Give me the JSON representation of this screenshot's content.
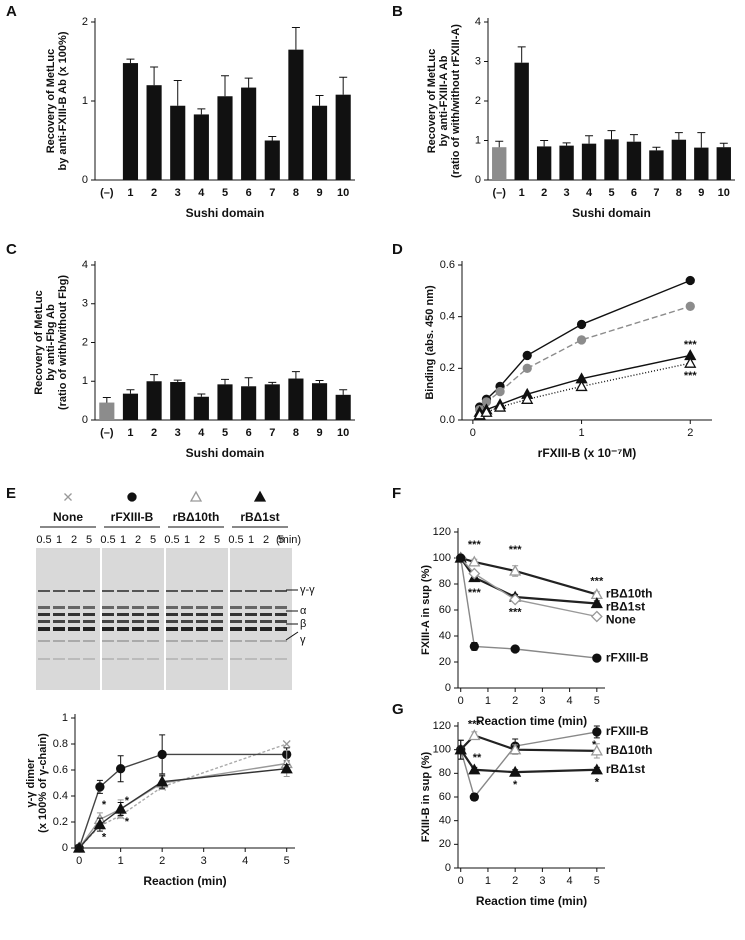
{
  "chart_data": [
    {
      "panel": "A",
      "type": "bar",
      "ylabel": [
        "Recovery of MetLuc",
        "by anti-FXIII-B Ab (x 100%)"
      ],
      "xlabel": "Sushi domain",
      "categories": [
        "(–)",
        "1",
        "2",
        "3",
        "4",
        "5",
        "6",
        "7",
        "8",
        "9",
        "10"
      ],
      "values": [
        0,
        1.48,
        1.2,
        0.94,
        0.83,
        1.06,
        1.17,
        0.5,
        1.65,
        0.94,
        1.08
      ],
      "errors": [
        null,
        0.05,
        0.23,
        0.32,
        0.07,
        0.26,
        0.12,
        0.05,
        0.28,
        0.13,
        0.22
      ],
      "colors": [
        "#111111",
        "#111111",
        "#111111",
        "#111111",
        "#111111",
        "#111111",
        "#111111",
        "#111111",
        "#111111",
        "#111111",
        "#111111"
      ],
      "ylim": [
        0,
        2
      ],
      "yticks": [
        0,
        1,
        2
      ]
    },
    {
      "panel": "B",
      "type": "bar",
      "ylabel": [
        "Recovery of MetLuc",
        "by anti-FXIII-A Ab",
        "(ratio of with/without rFXIII-A)"
      ],
      "xlabel": "Sushi domain",
      "categories": [
        "(–)",
        "1",
        "2",
        "3",
        "4",
        "5",
        "6",
        "7",
        "8",
        "9",
        "10"
      ],
      "values": [
        0.83,
        2.97,
        0.85,
        0.87,
        0.92,
        1.03,
        0.97,
        0.75,
        1.02,
        0.82,
        0.83
      ],
      "errors": [
        0.15,
        0.4,
        0.15,
        0.07,
        0.2,
        0.22,
        0.18,
        0.08,
        0.18,
        0.38,
        0.1
      ],
      "colors": [
        "#8c8c8c",
        "#111111",
        "#111111",
        "#111111",
        "#111111",
        "#111111",
        "#111111",
        "#111111",
        "#111111",
        "#111111",
        "#111111"
      ],
      "ylim": [
        0,
        4
      ],
      "yticks": [
        0,
        1,
        2,
        3,
        4
      ]
    },
    {
      "panel": "C",
      "type": "bar",
      "ylabel": [
        "Recovery of MetLuc",
        "by anti-Fbg Ab",
        "(ratio of with/without Fbg)"
      ],
      "xlabel": "Sushi domain",
      "categories": [
        "(–)",
        "1",
        "2",
        "3",
        "4",
        "5",
        "6",
        "7",
        "8",
        "9",
        "10"
      ],
      "values": [
        0.45,
        0.68,
        1.0,
        0.98,
        0.6,
        0.92,
        0.87,
        0.92,
        1.07,
        0.95,
        0.65
      ],
      "errors": [
        0.13,
        0.1,
        0.17,
        0.05,
        0.07,
        0.13,
        0.22,
        0.05,
        0.18,
        0.07,
        0.13
      ],
      "colors": [
        "#8c8c8c",
        "#111111",
        "#111111",
        "#111111",
        "#111111",
        "#111111",
        "#111111",
        "#111111",
        "#111111",
        "#111111",
        "#111111"
      ],
      "ylim": [
        0,
        4
      ],
      "yticks": [
        0,
        1,
        2,
        3,
        4
      ]
    },
    {
      "panel": "D",
      "type": "line",
      "ylabel": [
        "Binding (abs. 450 nm)"
      ],
      "xlabel": "rFXIII-B (x 10⁻⁷M)",
      "x": [
        0.0625,
        0.125,
        0.25,
        0.5,
        1,
        2
      ],
      "series": [
        {
          "color": "#111111",
          "line_color": "#111111",
          "marker": "circle",
          "filled": true,
          "values": [
            0.05,
            0.08,
            0.13,
            0.25,
            0.37,
            0.54
          ]
        },
        {
          "color": "#8c8c8c",
          "line_color": "#8c8c8c",
          "marker": "circle",
          "filled": true,
          "dash": "6,3",
          "values": [
            0.04,
            0.07,
            0.11,
            0.2,
            0.31,
            0.44
          ]
        },
        {
          "color": "#111111",
          "line_color": "#111111",
          "marker": "triangle",
          "filled": true,
          "values": [
            0.03,
            0.04,
            0.06,
            0.1,
            0.16,
            0.25
          ]
        },
        {
          "color": "#111111",
          "line_color": "#111111",
          "marker": "triangle",
          "filled": false,
          "dash": "1,2",
          "values": [
            0.02,
            0.03,
            0.05,
            0.08,
            0.13,
            0.22
          ]
        }
      ],
      "annotations": [
        {
          "text": "***",
          "x": 2,
          "y": 0.29
        },
        {
          "text": "***",
          "x": 2,
          "y": 0.17
        }
      ],
      "xlim": [
        -0.1,
        2.2
      ],
      "xticks": [
        0,
        1,
        2
      ],
      "ylim": [
        0,
        0.6
      ],
      "yticks": [
        {
          "value": 0,
          "label": "0.0"
        },
        0.2,
        0.4,
        0.6
      ]
    },
    {
      "panel": "E",
      "type": "line",
      "ylabel": [
        "γ-γ dimer",
        "(x 100% of γ-chain)"
      ],
      "xlabel": "Reaction (min)",
      "x": [
        0,
        0.5,
        1,
        2,
        5
      ],
      "series": [
        {
          "name": "None",
          "color": "#999999",
          "line_color": "#aaaaaa",
          "marker": "x",
          "filled": false,
          "dash": "3,2",
          "values": [
            0,
            0.17,
            0.25,
            0.47,
            0.8
          ]
        },
        {
          "name": "rFXIII-B",
          "color": "#111111",
          "line_color": "#444444",
          "marker": "circle",
          "filled": true,
          "values": [
            0,
            0.47,
            0.61,
            0.72,
            0.72
          ],
          "errors": [
            0,
            0.05,
            0.1,
            0.15,
            0.05
          ]
        },
        {
          "name": "rBΔ10th",
          "color": "#999999",
          "line_color": "#999999",
          "marker": "triangle",
          "filled": false,
          "values": [
            0,
            0.22,
            0.3,
            0.5,
            0.65
          ],
          "errors": [
            0,
            0.05,
            0.07,
            0.05,
            0.1
          ]
        },
        {
          "name": "rBΔ1st",
          "color": "#111111",
          "line_color": "#333333",
          "marker": "triangle",
          "filled": true,
          "values": [
            0,
            0.18,
            0.3,
            0.51,
            0.61
          ],
          "errors": [
            0,
            0.05,
            0.05,
            0.05,
            0.03
          ]
        }
      ],
      "annotations": [
        {
          "text": "*",
          "x": 0.6,
          "y": 0.33
        },
        {
          "text": "*",
          "x": 0.6,
          "y": 0.08
        },
        {
          "text": "*",
          "x": 1.15,
          "y": 0.36
        },
        {
          "text": "*",
          "x": 1.15,
          "y": 0.2
        }
      ],
      "xlim": [
        -0.1,
        5.2
      ],
      "xticks": [
        0,
        1,
        2,
        3,
        4,
        5
      ],
      "ylim": [
        0,
        1
      ],
      "yticks": [
        0,
        0.2,
        0.4,
        0.6,
        0.8,
        1
      ]
    },
    {
      "panel": "F",
      "type": "line",
      "ylabel": [
        "FXIII-A in sup (%)"
      ],
      "xlabel": "Reaction time (min)",
      "end_labels": true,
      "x": [
        0,
        0.5,
        2,
        5
      ],
      "series": [
        {
          "name": "rBΔ10th",
          "color": "#999999",
          "line_color": "#222222",
          "marker": "triangle",
          "filled": false,
          "values": [
            100,
            97,
            90,
            72
          ],
          "errors": [
            2,
            2,
            4,
            2
          ]
        },
        {
          "name": "rBΔ1st",
          "color": "#111111",
          "line_color": "#222222",
          "marker": "triangle",
          "filled": true,
          "values": [
            100,
            85,
            70,
            65
          ],
          "errors": [
            2,
            2,
            2,
            2
          ]
        },
        {
          "name": "None",
          "color": "#999999",
          "line_color": "#999999",
          "marker": "diamond",
          "filled": false,
          "values": [
            100,
            88,
            68,
            55
          ]
        },
        {
          "name": "rFXIII-B",
          "color": "#111111",
          "line_color": "#888888",
          "marker": "circle",
          "filled": true,
          "values": [
            100,
            32,
            30,
            23
          ],
          "errors": [
            2,
            3,
            2,
            1
          ]
        }
      ],
      "annotations": [
        {
          "text": "***",
          "x": 0.5,
          "y": 110
        },
        {
          "text": "***",
          "x": 2,
          "y": 106
        },
        {
          "text": "***",
          "x": 5,
          "y": 82
        },
        {
          "text": "***",
          "x": 0.5,
          "y": 73
        },
        {
          "text": "***",
          "x": 2,
          "y": 58
        }
      ],
      "xlim": [
        -0.1,
        5.3
      ],
      "xticks": [
        0,
        1,
        2,
        3,
        4,
        5
      ],
      "ylim": [
        0,
        120
      ],
      "yticks": [
        0,
        20,
        40,
        60,
        80,
        100,
        120
      ]
    },
    {
      "panel": "G",
      "type": "line",
      "ylabel": [
        "FXIII-B in sup (%)"
      ],
      "xlabel": "Reaction time (min)",
      "end_labels": true,
      "x": [
        0,
        0.5,
        2,
        5
      ],
      "series": [
        {
          "name": "rFXIII-B",
          "color": "#111111",
          "line_color": "#888888",
          "marker": "circle",
          "filled": true,
          "values": [
            100,
            60,
            103,
            115
          ],
          "errors": [
            8,
            3,
            6,
            5
          ]
        },
        {
          "name": "rBΔ10th",
          "color": "#999999",
          "line_color": "#222222",
          "marker": "triangle",
          "filled": false,
          "values": [
            100,
            112,
            100,
            99
          ],
          "errors": [
            8,
            3,
            4,
            6
          ]
        },
        {
          "name": "rBΔ1st",
          "color": "#111111",
          "line_color": "#222222",
          "marker": "triangle",
          "filled": true,
          "values": [
            100,
            83,
            81,
            83
          ],
          "errors": [
            8,
            2,
            2,
            2
          ]
        }
      ],
      "annotations": [
        {
          "text": "***",
          "x": 0.5,
          "y": 121
        },
        {
          "text": "**",
          "x": 0.6,
          "y": 93
        },
        {
          "text": "*",
          "x": 2,
          "y": 70
        },
        {
          "text": "*",
          "x": 4.9,
          "y": 104
        },
        {
          "text": "*",
          "x": 5,
          "y": 72
        }
      ],
      "xlim": [
        -0.1,
        5.3
      ],
      "xticks": [
        0,
        1,
        2,
        3,
        4,
        5
      ],
      "ylim": [
        0,
        120
      ],
      "yticks": [
        0,
        20,
        40,
        60,
        80,
        100,
        120
      ]
    }
  ],
  "gel": {
    "lane_times": [
      "0.5",
      "1",
      "2",
      "5"
    ],
    "unit": "(min)",
    "bands": [
      "γ-γ",
      "α",
      "β",
      "γ"
    ]
  }
}
